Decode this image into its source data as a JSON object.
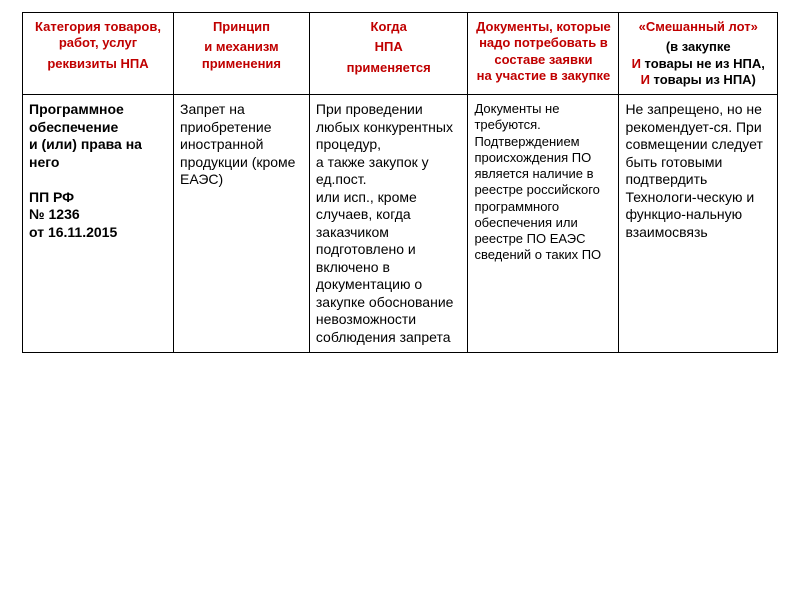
{
  "colors": {
    "header_text": "#c00000",
    "body_text": "#000000",
    "border": "#000000",
    "background": "#ffffff"
  },
  "typography": {
    "header_fontsize": 13,
    "body_fontsize": 14,
    "small_fontsize": 13,
    "font_family": "Arial"
  },
  "table": {
    "column_widths_pct": [
      20,
      18,
      21,
      20,
      21
    ],
    "headers": {
      "c1_line1": "Категория товаров, работ, услуг",
      "c1_line2": "реквизиты НПА",
      "c2_line1": "Принцип",
      "c2_line2": "и механизм применения",
      "c3_line1": "Когда",
      "c3_line2": "НПА",
      "c3_line3": "применяется",
      "c4": "Документы, которые надо потребовать в составе заявки на участие в закупке",
      "c5_line1": "«Смешанный лот»",
      "c5_pre": "(в закупке",
      "c5_and1": "И",
      "c5_mid1": " товары не из НПА,  ",
      "c5_and2": "И",
      "c5_mid2": " товары из НПА)"
    },
    "row": {
      "category_title": "Программное обеспечение и (или) права на него",
      "category_ref1": "ПП РФ",
      "category_ref2": "№ 1236",
      "category_ref3": "от 16.11.2015",
      "principle": "Запрет на приобретение иностранной продукции (кроме ЕАЭС)",
      "when": "При проведении любых конкурентных процедур,\nа также закупок у ед.пост.\nили исп., кроме случаев, когда заказчиком подготовлено и включено в документацию о закупке обоснование невозможности соблюдения запрета",
      "docs": "Документы не требуются. Подтверждением происхождения ПО является наличие в реестре российского программного обеспечения или реестре ПО ЕАЭС сведений о таких ПО",
      "mixed": "Не запрещено, но не рекомендует-ся. При совмещении следует быть готовыми подтвердить Технологи-ческую и функцио-нальную взаимосвязь"
    }
  }
}
